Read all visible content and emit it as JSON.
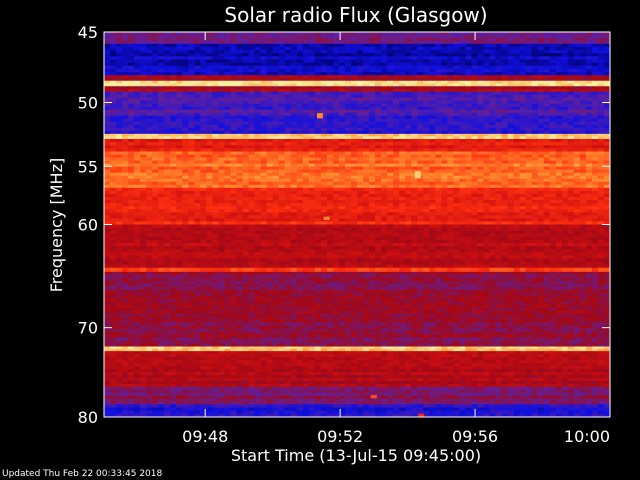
{
  "chart_data": {
    "type": "heatmap",
    "title": "Solar radio Flux (Glasgow)",
    "xlabel": "Start Time (13-Jul-15 09:45:00)",
    "ylabel": "Frequency [MHz]",
    "x_range_minutes": [
      0,
      15
    ],
    "x_ticks": [
      {
        "minute": 3,
        "label": "09:48"
      },
      {
        "minute": 7,
        "label": "09:52"
      },
      {
        "minute": 11,
        "label": "09:56"
      },
      {
        "minute": 15,
        "label": "10:00"
      }
    ],
    "y_range_mhz": [
      45,
      80
    ],
    "y_scale": "log",
    "y_ticks": [
      {
        "mhz": 45,
        "label": "45"
      },
      {
        "mhz": 50,
        "label": "50"
      },
      {
        "mhz": 55,
        "label": "55"
      },
      {
        "mhz": 60,
        "label": "60"
      },
      {
        "mhz": 70,
        "label": "70"
      },
      {
        "mhz": 80,
        "label": "80"
      }
    ],
    "colormap": [
      "#000060",
      "#1010e0",
      "#6020a0",
      "#a00818",
      "#d01010",
      "#ff3010",
      "#ff9030",
      "#fff0a0"
    ],
    "bands": [
      {
        "f0": 45.0,
        "f1": 45.8,
        "level": 0.3
      },
      {
        "f0": 45.8,
        "f1": 48.0,
        "level": 0.1
      },
      {
        "f0": 48.0,
        "f1": 48.4,
        "level": 0.45
      },
      {
        "f0": 48.4,
        "f1": 48.8,
        "level": 0.98
      },
      {
        "f0": 48.8,
        "f1": 49.2,
        "level": 0.45
      },
      {
        "f0": 49.2,
        "f1": 51.0,
        "level": 0.25
      },
      {
        "f0": 51.0,
        "f1": 52.4,
        "level": 0.2
      },
      {
        "f0": 52.4,
        "f1": 52.8,
        "level": 0.92
      },
      {
        "f0": 52.8,
        "f1": 53.8,
        "level": 0.62
      },
      {
        "f0": 53.8,
        "f1": 56.8,
        "level": 0.8
      },
      {
        "f0": 56.8,
        "f1": 60.0,
        "level": 0.66
      },
      {
        "f0": 60.0,
        "f1": 64.0,
        "level": 0.5
      },
      {
        "f0": 64.0,
        "f1": 64.4,
        "level": 0.7
      },
      {
        "f0": 64.4,
        "f1": 72.0,
        "level": 0.4
      },
      {
        "f0": 72.0,
        "f1": 72.5,
        "level": 0.95
      },
      {
        "f0": 72.5,
        "f1": 76.5,
        "level": 0.48
      },
      {
        "f0": 76.5,
        "f1": 78.5,
        "level": 0.36
      },
      {
        "f0": 78.5,
        "f1": 80.0,
        "level": 0.18
      }
    ],
    "bursts": [
      {
        "minute": 6.4,
        "f0": 50.8,
        "f1": 51.2,
        "level": 0.85
      },
      {
        "minute": 6.6,
        "f0": 59.3,
        "f1": 59.6,
        "level": 0.85
      },
      {
        "minute": 9.3,
        "f0": 55.4,
        "f1": 56.0,
        "level": 0.95
      },
      {
        "minute": 8.0,
        "f0": 77.4,
        "f1": 77.8,
        "level": 0.75
      },
      {
        "minute": 9.4,
        "f0": 79.6,
        "f1": 80.0,
        "level": 0.7
      }
    ]
  },
  "footer": "Updated Thu Feb 22 00:33:45 2018"
}
